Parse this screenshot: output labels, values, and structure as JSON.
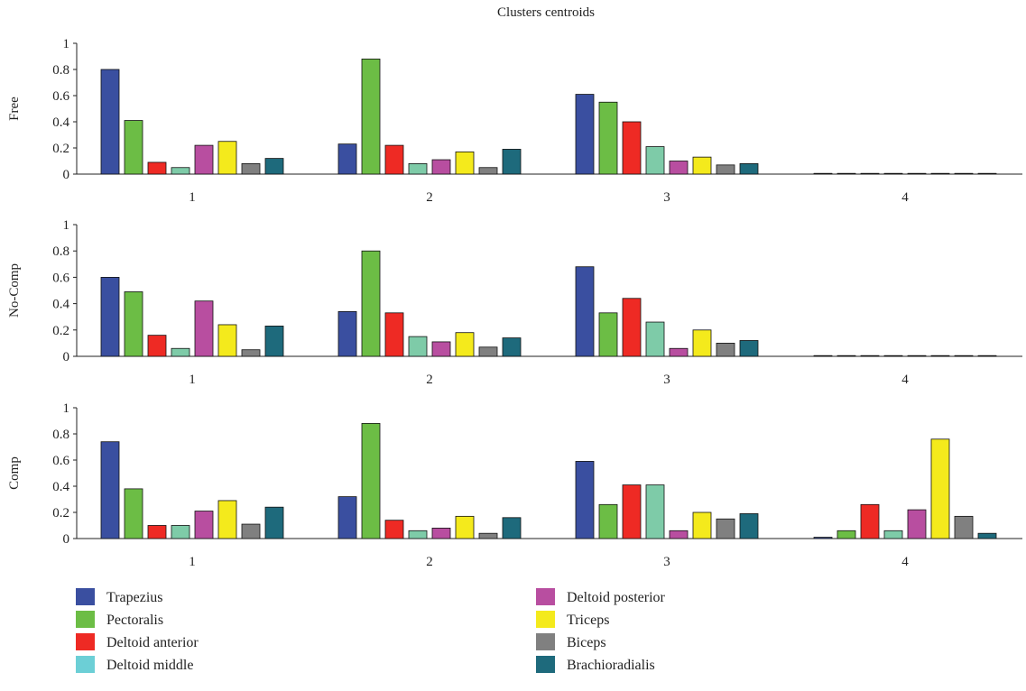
{
  "chart_data": {
    "type": "bar",
    "title": "Clusters centroids",
    "categories": [
      "1",
      "2",
      "3",
      "4"
    ],
    "ylim": [
      0,
      1
    ],
    "yticks": [
      "0",
      "0.2",
      "0.4",
      "0.6",
      "0.8",
      "1"
    ],
    "grid": false,
    "legend_position": "bottom",
    "muscles": [
      {
        "name": "Trapezius",
        "color": "#3a4fa0"
      },
      {
        "name": "Pectoralis",
        "color": "#6cbd45"
      },
      {
        "name": "Deltoid anterior",
        "color": "#ee2a24"
      },
      {
        "name": "Deltoid middle",
        "color": "#7ecba8"
      },
      {
        "name": "Deltoid posterior",
        "color": "#b84ea0"
      },
      {
        "name": "Triceps",
        "color": "#f4ea1c"
      },
      {
        "name": "Biceps",
        "color": "#808080"
      },
      {
        "name": "Brachioradialis",
        "color": "#1e6a7c"
      }
    ],
    "legend_swatches": [
      "#3a4fa0",
      "#6cbd45",
      "#ee2a24",
      "#6ccfd6",
      "#b84ea0",
      "#f4ea1c",
      "#808080",
      "#1e6a7c"
    ],
    "panels": [
      {
        "ylabel": "Free",
        "values": [
          [
            0.8,
            0.41,
            0.09,
            0.05,
            0.22,
            0.25,
            0.08,
            0.12
          ],
          [
            0.23,
            0.88,
            0.22,
            0.08,
            0.11,
            0.17,
            0.05,
            0.19
          ],
          [
            0.61,
            0.55,
            0.4,
            0.21,
            0.1,
            0.13,
            0.07,
            0.08
          ],
          [
            0,
            0,
            0,
            0,
            0,
            0,
            0,
            0
          ]
        ]
      },
      {
        "ylabel": "No-Comp",
        "values": [
          [
            0.6,
            0.49,
            0.16,
            0.06,
            0.42,
            0.24,
            0.05,
            0.23
          ],
          [
            0.34,
            0.8,
            0.33,
            0.15,
            0.11,
            0.18,
            0.07,
            0.14
          ],
          [
            0.68,
            0.33,
            0.44,
            0.26,
            0.06,
            0.2,
            0.1,
            0.12
          ],
          [
            0,
            0,
            0,
            0,
            0,
            0,
            0,
            0
          ]
        ]
      },
      {
        "ylabel": "Comp",
        "values": [
          [
            0.74,
            0.38,
            0.1,
            0.1,
            0.21,
            0.29,
            0.11,
            0.24
          ],
          [
            0.32,
            0.88,
            0.14,
            0.06,
            0.08,
            0.17,
            0.04,
            0.16
          ],
          [
            0.59,
            0.26,
            0.41,
            0.41,
            0.06,
            0.2,
            0.15,
            0.19
          ],
          [
            0.01,
            0.06,
            0.26,
            0.06,
            0.22,
            0.76,
            0.17,
            0.04
          ]
        ]
      }
    ]
  }
}
